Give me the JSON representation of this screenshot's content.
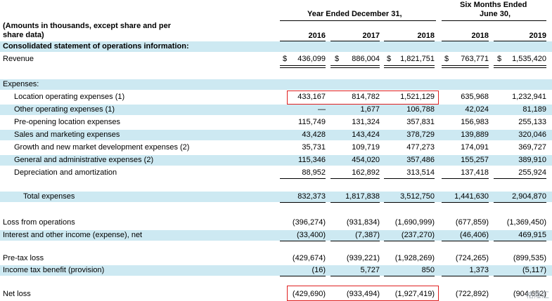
{
  "header": {
    "group1": "Year Ended December 31,",
    "group2_line1": "Six Months Ended",
    "group2_line2": "June 30,",
    "note_line1": "(Amounts in thousands, except share and per",
    "note_line2": "share data)",
    "columns": [
      "2016",
      "2017",
      "2018",
      "2018",
      "2019"
    ]
  },
  "section_title": "Consolidated statement of operations information:",
  "revenue": {
    "label": "Revenue",
    "currency": "$",
    "values": [
      "436,099",
      "886,004",
      "1,821,751",
      "763,771",
      "1,535,420"
    ]
  },
  "expenses_heading": "Expenses:",
  "expense_rows": [
    {
      "label": "Location operating expenses (1)",
      "values": [
        "433,167",
        "814,782",
        "1,521,129",
        "635,968",
        "1,232,941"
      ]
    },
    {
      "label": "Other operating expenses (1)",
      "values": [
        "—",
        "1,677",
        "106,788",
        "42,024",
        "81,189"
      ]
    },
    {
      "label": "Pre-opening location expenses",
      "values": [
        "115,749",
        "131,324",
        "357,831",
        "156,983",
        "255,133"
      ]
    },
    {
      "label": "Sales and marketing expenses",
      "values": [
        "43,428",
        "143,424",
        "378,729",
        "139,889",
        "320,046"
      ]
    },
    {
      "label": "Growth and new market development expenses (2)",
      "values": [
        "35,731",
        "109,719",
        "477,273",
        "174,091",
        "369,727"
      ]
    },
    {
      "label": "General and administrative expenses (2)",
      "values": [
        "115,346",
        "454,020",
        "357,486",
        "155,257",
        "389,910"
      ]
    },
    {
      "label": "Depreciation and amortization",
      "values": [
        "88,952",
        "162,892",
        "313,514",
        "137,418",
        "255,924"
      ]
    }
  ],
  "total_expenses": {
    "label": "Total expenses",
    "values": [
      "832,373",
      "1,817,838",
      "3,512,750",
      "1,441,630",
      "2,904,870"
    ]
  },
  "loss_from_operations": {
    "label": "Loss from operations",
    "values": [
      "(396,274)",
      "(931,834)",
      "(1,690,999)",
      "(677,859)",
      "(1,369,450)"
    ]
  },
  "interest_income": {
    "label": "Interest and other income (expense), net",
    "values": [
      "(33,400)",
      "(7,387)",
      "(237,270)",
      "(46,406)",
      "469,915"
    ]
  },
  "pretax_loss": {
    "label": "Pre-tax loss",
    "values": [
      "(429,674)",
      "(939,221)",
      "(1,928,269)",
      "(724,265)",
      "(899,535)"
    ]
  },
  "income_tax": {
    "label": "Income tax benefit (provision)",
    "values": [
      "(16)",
      "5,727",
      "850",
      "1,373",
      "(5,117)"
    ]
  },
  "net_loss": {
    "label": "Net loss",
    "values": [
      "(429,690)",
      "(933,494)",
      "(1,927,419)",
      "(722,892)",
      "(904,652)"
    ]
  },
  "watermark": "格隆汇",
  "colors": {
    "row_shade": "#d3ecf4",
    "highlight_box": "#e02020"
  }
}
